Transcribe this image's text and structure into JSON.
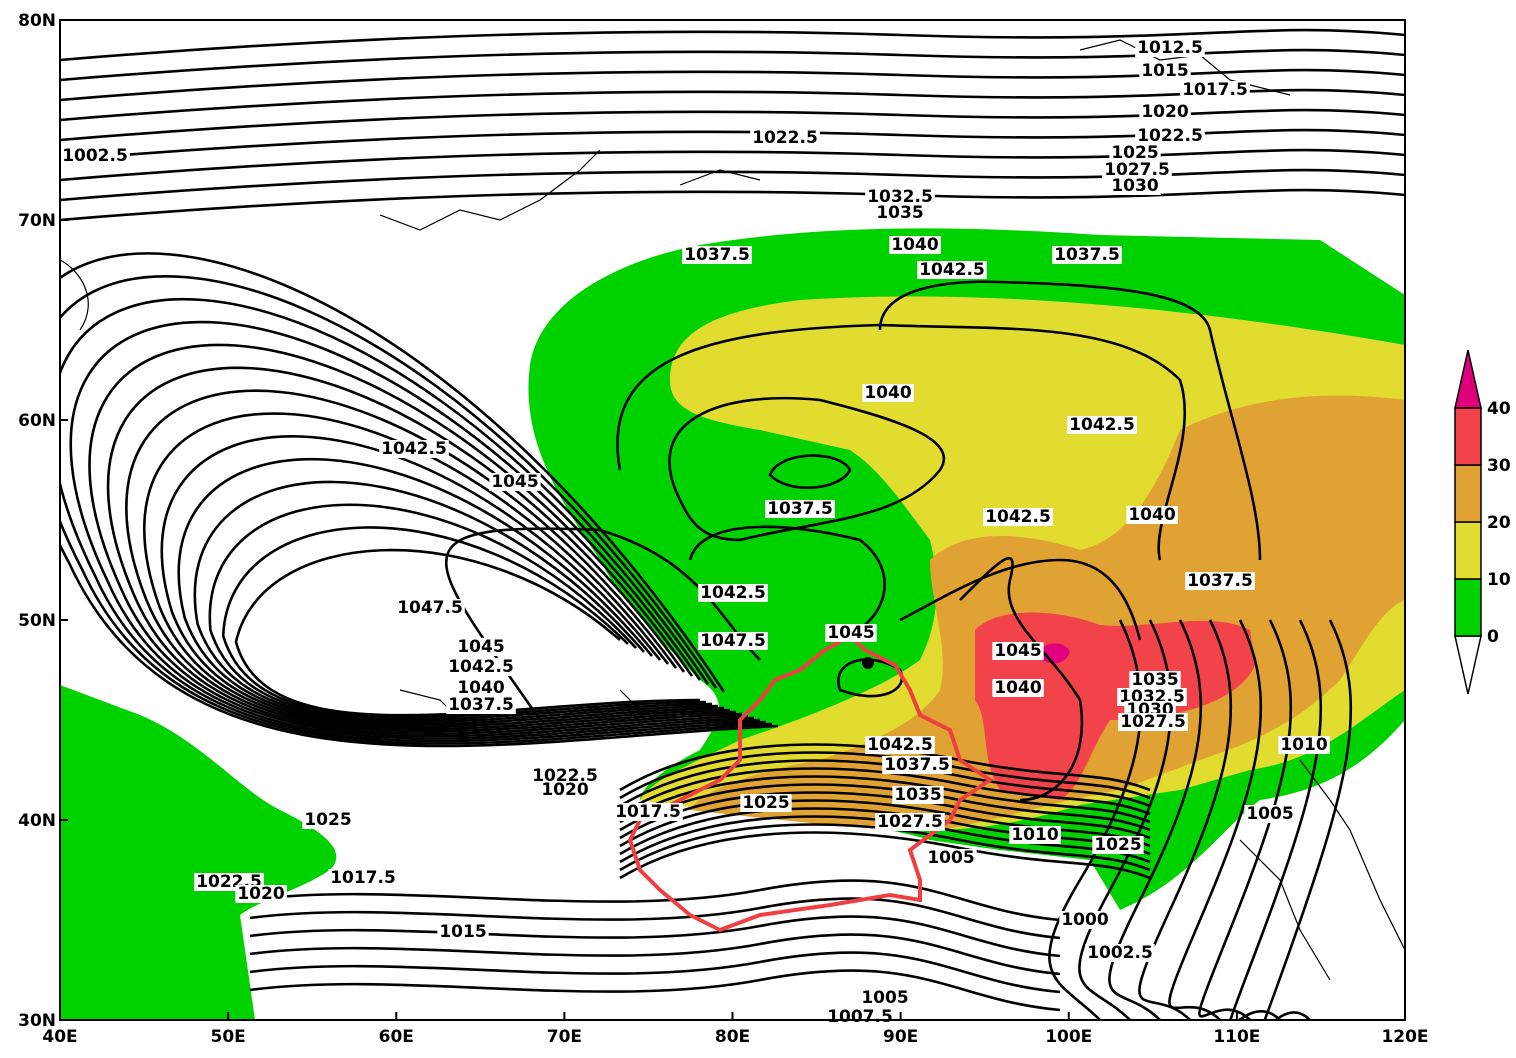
{
  "map": {
    "x_ticks": [
      "40E",
      "50E",
      "60E",
      "70E",
      "80E",
      "90E",
      "100E",
      "110E",
      "120E"
    ],
    "y_ticks": [
      "30N",
      "40N",
      "50N",
      "60N",
      "70N",
      "80N"
    ],
    "colorbar_ticks": [
      0,
      10,
      20,
      30,
      40
    ],
    "contour_labels": [
      1012.5,
      1015,
      1017.5,
      1020,
      1022.5,
      1025,
      1027.5,
      1030,
      1002.5,
      1022.5,
      1032.5,
      1035,
      1037.5,
      1040,
      1042.5,
      1037.5,
      1040,
      1042.5,
      1042.5,
      1045,
      1037.5,
      1042.5,
      1040,
      1037.5,
      1047.5,
      1042.5,
      1047.5,
      1045,
      1045,
      1040,
      1035,
      1032.5,
      1030,
      1027.5,
      1045,
      1042.5,
      1040,
      1037.5,
      1010,
      1042.5,
      1037.5,
      1022.5,
      1020,
      1025,
      1035,
      1027.5,
      1025,
      1005,
      1017.5,
      1010,
      1025,
      1005,
      1017.5,
      1022.5,
      1020,
      1015,
      1000,
      1002.5,
      1005,
      1007.5
    ]
  }
}
